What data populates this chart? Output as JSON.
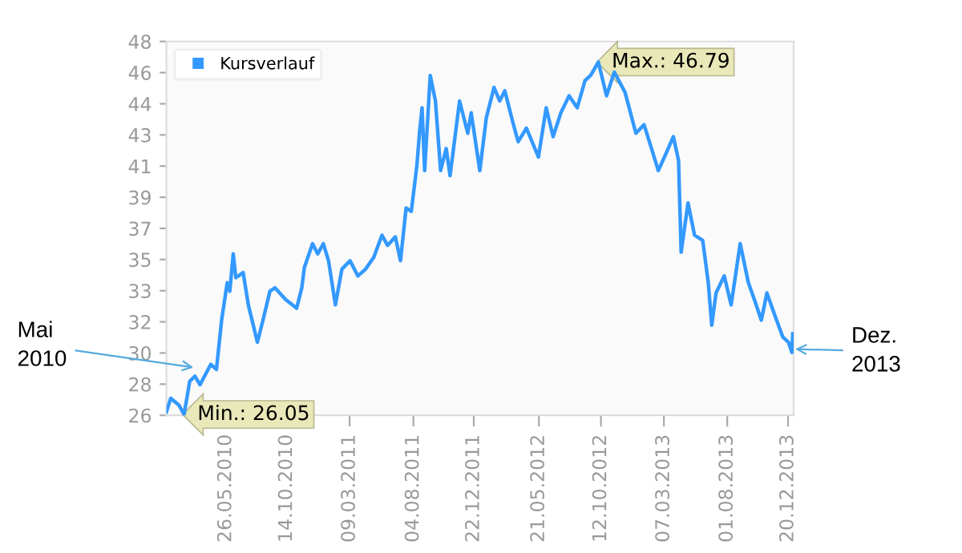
{
  "chart_data": {
    "type": "line",
    "x": [
      "2010-01-08",
      "2010-01-18",
      "2010-02-06",
      "2010-02-18",
      "2010-03-03",
      "2010-03-15",
      "2010-03-27",
      "2010-04-21",
      "2010-05-04",
      "2010-05-16",
      "2010-05-29",
      "2010-06-04",
      "2010-06-12",
      "2010-06-18",
      "2010-07-05",
      "2010-07-17",
      "2010-08-07",
      "2010-08-20",
      "2010-09-05",
      "2010-09-17",
      "2010-10-12",
      "2010-11-06",
      "2010-11-18",
      "2010-11-24",
      "2010-12-13",
      "2010-12-25",
      "2011-01-07",
      "2011-01-19",
      "2011-02-04",
      "2011-02-19",
      "2011-03-10",
      "2011-03-28",
      "2011-04-15",
      "2011-05-04",
      "2011-05-23",
      "2011-06-05",
      "2011-06-23",
      "2011-07-05",
      "2011-07-18",
      "2011-07-30",
      "2011-08-12",
      "2011-08-18",
      "2011-08-24",
      "2011-08-30",
      "2011-09-12",
      "2011-09-24",
      "2011-10-06",
      "2011-10-19",
      "2011-10-28",
      "2011-11-19",
      "2011-12-08",
      "2011-12-16",
      "2012-01-05",
      "2012-01-20",
      "2012-02-07",
      "2012-02-20",
      "2012-03-03",
      "2012-03-22",
      "2012-04-03",
      "2012-04-22",
      "2012-05-20",
      "2012-06-07",
      "2012-06-23",
      "2012-07-11",
      "2012-07-30",
      "2012-08-18",
      "2012-09-05",
      "2012-09-18",
      "2012-10-06",
      "2012-10-25",
      "2012-11-12",
      "2012-12-07",
      "2013-01-01",
      "2013-01-20",
      "2013-02-05",
      "2013-02-22",
      "2013-03-10",
      "2013-03-29",
      "2013-04-10",
      "2013-04-16",
      "2013-05-02",
      "2013-05-17",
      "2013-06-05",
      "2013-06-18",
      "2013-06-26",
      "2013-07-06",
      "2013-07-25",
      "2013-08-10",
      "2013-08-31",
      "2013-09-19",
      "2013-10-03",
      "2013-10-19",
      "2013-11-01",
      "2013-11-19",
      "2013-12-08",
      "2013-12-21",
      "2013-12-29",
      "2013-12-31"
    ],
    "series": [
      {
        "name": "Kursverlauf",
        "color": "#3399ff",
        "values": [
          26.2,
          27.0,
          26.6,
          26.05,
          28.0,
          28.3,
          27.8,
          29.0,
          28.7,
          31.6,
          33.8,
          33.3,
          35.5,
          34.1,
          34.4,
          32.5,
          30.3,
          31.6,
          33.3,
          33.5,
          32.8,
          32.3,
          33.5,
          34.7,
          36.1,
          35.5,
          36.1,
          35.1,
          32.5,
          34.6,
          35.1,
          34.2,
          34.6,
          35.3,
          36.6,
          36.0,
          36.5,
          35.1,
          38.2,
          38.0,
          40.7,
          42.6,
          44.1,
          40.4,
          46.0,
          44.5,
          40.4,
          41.7,
          40.1,
          44.5,
          42.6,
          43.8,
          40.4,
          43.5,
          45.3,
          44.5,
          45.1,
          43.2,
          42.1,
          42.9,
          41.2,
          44.1,
          42.4,
          43.8,
          44.8,
          44.1,
          45.7,
          46.0,
          46.79,
          44.8,
          46.2,
          45.0,
          42.6,
          43.1,
          41.8,
          40.4,
          41.3,
          42.4,
          41.0,
          35.6,
          38.5,
          36.6,
          36.3,
          33.8,
          31.3,
          33.2,
          34.2,
          32.5,
          36.1,
          33.8,
          32.8,
          31.6,
          33.2,
          31.9,
          30.6,
          30.3,
          29.7,
          30.8
        ]
      }
    ],
    "xlim": [
      "2010-01-08",
      "2014-01-02"
    ],
    "xticks": [
      {
        "value": "2010-05-26",
        "label": "26.05.2010"
      },
      {
        "value": "2010-10-14",
        "label": "14.10.2010"
      },
      {
        "value": "2011-03-09",
        "label": "09.03.2011"
      },
      {
        "value": "2011-08-04",
        "label": "04.08.2011"
      },
      {
        "value": "2011-12-22",
        "label": "22.12.2011"
      },
      {
        "value": "2012-05-21",
        "label": "21.05.2012"
      },
      {
        "value": "2012-10-12",
        "label": "12.10.2012"
      },
      {
        "value": "2013-03-07",
        "label": "07.03.2013"
      },
      {
        "value": "2013-08-01",
        "label": "01.08.2013"
      },
      {
        "value": "2013-12-20",
        "label": "20.12.2013"
      }
    ],
    "ylim": [
      26,
      48
    ],
    "yticks": [
      26,
      {
        "value": 27.833,
        "label": "28"
      },
      {
        "value": 29.667,
        "label": "30"
      },
      {
        "value": 31.5,
        "label": "32"
      },
      {
        "value": 33.333,
        "label": "33"
      },
      {
        "value": 35.167,
        "label": "35"
      },
      37,
      {
        "value": 38.833,
        "label": "39"
      },
      {
        "value": 40.667,
        "label": "41"
      },
      {
        "value": 42.5,
        "label": "43"
      },
      {
        "value": 44.333,
        "label": "44"
      },
      {
        "value": 46.167,
        "label": "46"
      },
      48
    ],
    "annotations": [
      {
        "text": "Min.: 26.05",
        "x": "2010-02-18",
        "y": 26.05
      },
      {
        "text": "Max.: 46.79",
        "x": "2012-10-06",
        "y": 46.79
      },
      {
        "text": "Mai\n2010",
        "x": "2010-03-17",
        "y": 28.8
      },
      {
        "text": "Dez.\n2013",
        "x": "2013-12-31",
        "y": 29.9
      }
    ],
    "legend": "top left",
    "grid": false,
    "marker": "none",
    "line_style": "solid"
  }
}
